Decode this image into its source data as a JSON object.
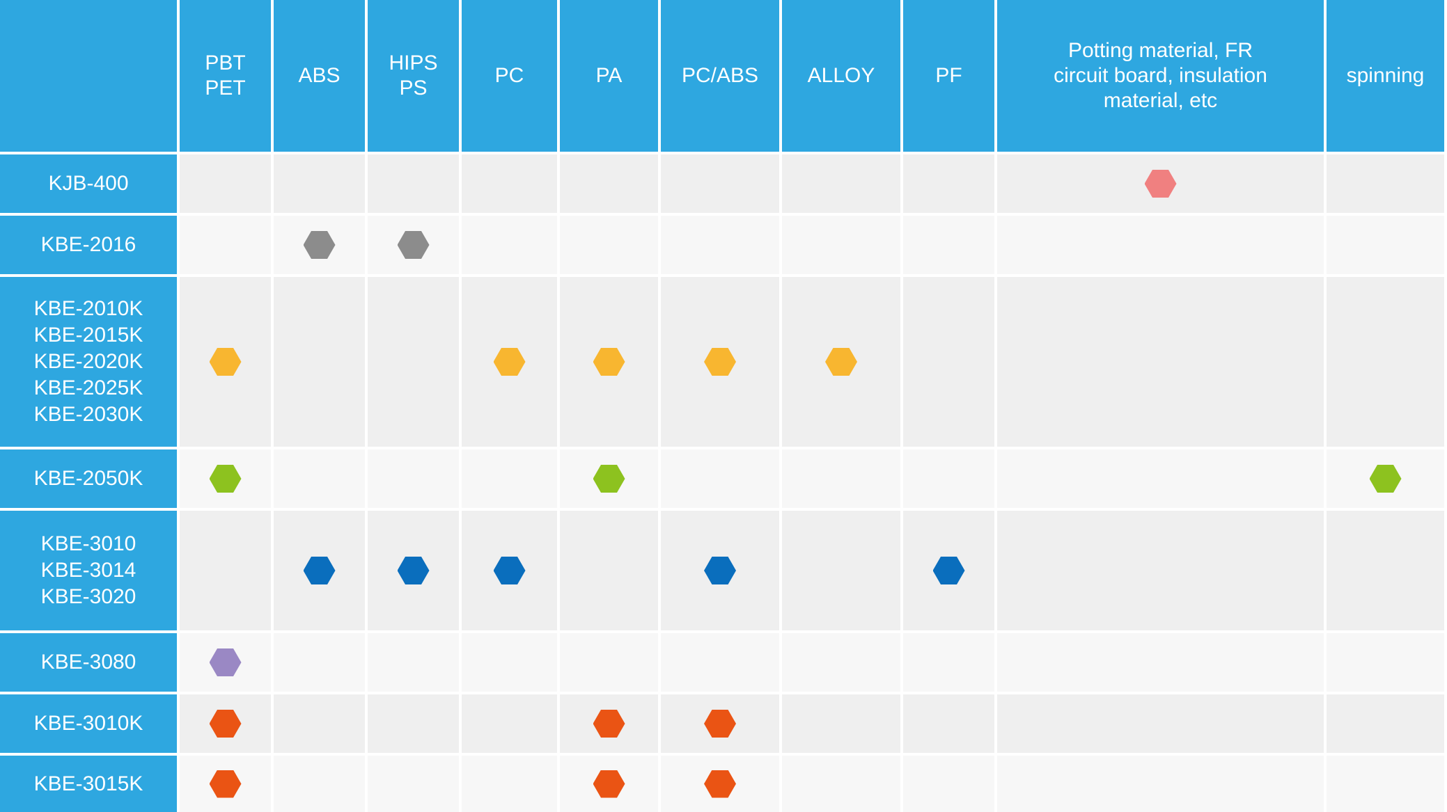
{
  "columns": [
    "PBT\nPET",
    "ABS",
    "HIPS\nPS",
    "PC",
    "PA",
    "PC/ABS",
    "ALLOY",
    "PF",
    "Potting material, FR\ncircuit board, insulation\nmaterial, etc",
    "spinning"
  ],
  "rows": [
    {
      "label": "KJB-400",
      "color": "#f08080",
      "marks": [
        false,
        false,
        false,
        false,
        false,
        false,
        false,
        false,
        true,
        false
      ]
    },
    {
      "label": "KBE-2016",
      "color": "#8c8c8c",
      "marks": [
        false,
        true,
        true,
        false,
        false,
        false,
        false,
        false,
        false,
        false
      ]
    },
    {
      "label": "KBE-2010K\nKBE-2015K\nKBE-2020K\nKBE-2025K\nKBE-2030K",
      "color": "#f8b630",
      "marks": [
        true,
        false,
        false,
        true,
        true,
        true,
        true,
        false,
        false,
        false
      ]
    },
    {
      "label": "KBE-2050K",
      "color": "#8dc21f",
      "marks": [
        true,
        false,
        false,
        false,
        true,
        false,
        false,
        false,
        false,
        true
      ]
    },
    {
      "label": "KBE-3010\nKBE-3014\nKBE-3020",
      "color": "#0a6ebd",
      "marks": [
        false,
        true,
        true,
        true,
        false,
        true,
        false,
        true,
        false,
        false
      ]
    },
    {
      "label": "KBE-3080",
      "color": "#9a88c4",
      "marks": [
        true,
        false,
        false,
        false,
        false,
        false,
        false,
        false,
        false,
        false
      ]
    },
    {
      "label": "KBE-3010K",
      "color": "#ea5414",
      "marks": [
        true,
        false,
        false,
        false,
        true,
        true,
        false,
        false,
        false,
        false
      ]
    },
    {
      "label": "KBE-3015K",
      "color": "#ea5414",
      "marks": [
        true,
        false,
        false,
        false,
        true,
        true,
        false,
        false,
        false,
        false
      ]
    }
  ],
  "colors": {
    "header_bg": "#2ea7e0",
    "header_text": "#ffffff",
    "row_shade_a": "#efefef",
    "row_shade_b": "#f7f7f7"
  }
}
